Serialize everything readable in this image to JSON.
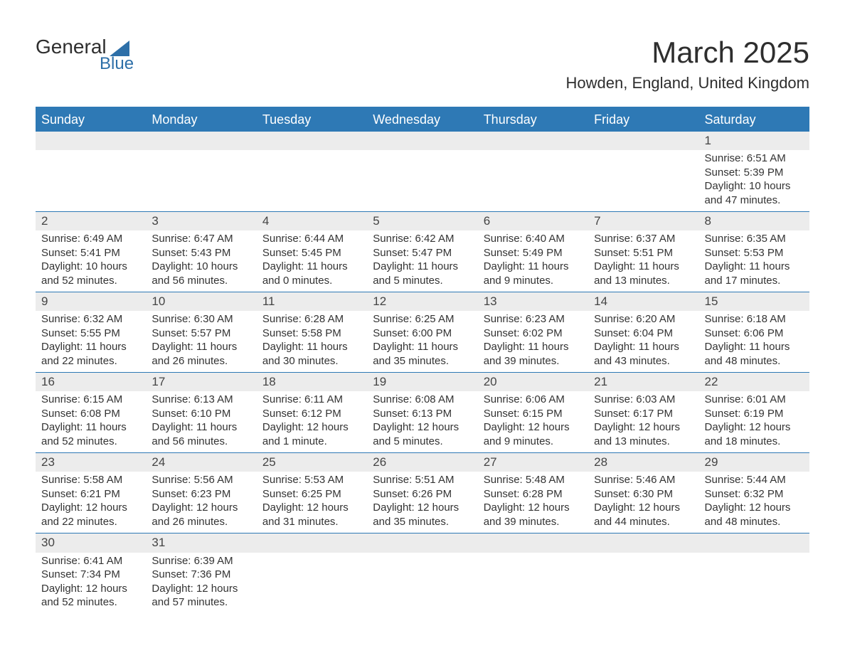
{
  "logo": {
    "text_general": "General",
    "text_blue": "Blue"
  },
  "header": {
    "month_title": "March 2025",
    "location": "Howden, England, United Kingdom"
  },
  "calendar": {
    "type": "table",
    "header_bg": "#2e79b5",
    "header_fg": "#ffffff",
    "daynum_bg": "#ececec",
    "row_divider": "#2e79b5",
    "text_color": "#333333",
    "columns": [
      "Sunday",
      "Monday",
      "Tuesday",
      "Wednesday",
      "Thursday",
      "Friday",
      "Saturday"
    ],
    "weeks": [
      [
        null,
        null,
        null,
        null,
        null,
        null,
        {
          "n": "1",
          "sunrise": "Sunrise: 6:51 AM",
          "sunset": "Sunset: 5:39 PM",
          "d1": "Daylight: 10 hours",
          "d2": "and 47 minutes."
        }
      ],
      [
        {
          "n": "2",
          "sunrise": "Sunrise: 6:49 AM",
          "sunset": "Sunset: 5:41 PM",
          "d1": "Daylight: 10 hours",
          "d2": "and 52 minutes."
        },
        {
          "n": "3",
          "sunrise": "Sunrise: 6:47 AM",
          "sunset": "Sunset: 5:43 PM",
          "d1": "Daylight: 10 hours",
          "d2": "and 56 minutes."
        },
        {
          "n": "4",
          "sunrise": "Sunrise: 6:44 AM",
          "sunset": "Sunset: 5:45 PM",
          "d1": "Daylight: 11 hours",
          "d2": "and 0 minutes."
        },
        {
          "n": "5",
          "sunrise": "Sunrise: 6:42 AM",
          "sunset": "Sunset: 5:47 PM",
          "d1": "Daylight: 11 hours",
          "d2": "and 5 minutes."
        },
        {
          "n": "6",
          "sunrise": "Sunrise: 6:40 AM",
          "sunset": "Sunset: 5:49 PM",
          "d1": "Daylight: 11 hours",
          "d2": "and 9 minutes."
        },
        {
          "n": "7",
          "sunrise": "Sunrise: 6:37 AM",
          "sunset": "Sunset: 5:51 PM",
          "d1": "Daylight: 11 hours",
          "d2": "and 13 minutes."
        },
        {
          "n": "8",
          "sunrise": "Sunrise: 6:35 AM",
          "sunset": "Sunset: 5:53 PM",
          "d1": "Daylight: 11 hours",
          "d2": "and 17 minutes."
        }
      ],
      [
        {
          "n": "9",
          "sunrise": "Sunrise: 6:32 AM",
          "sunset": "Sunset: 5:55 PM",
          "d1": "Daylight: 11 hours",
          "d2": "and 22 minutes."
        },
        {
          "n": "10",
          "sunrise": "Sunrise: 6:30 AM",
          "sunset": "Sunset: 5:57 PM",
          "d1": "Daylight: 11 hours",
          "d2": "and 26 minutes."
        },
        {
          "n": "11",
          "sunrise": "Sunrise: 6:28 AM",
          "sunset": "Sunset: 5:58 PM",
          "d1": "Daylight: 11 hours",
          "d2": "and 30 minutes."
        },
        {
          "n": "12",
          "sunrise": "Sunrise: 6:25 AM",
          "sunset": "Sunset: 6:00 PM",
          "d1": "Daylight: 11 hours",
          "d2": "and 35 minutes."
        },
        {
          "n": "13",
          "sunrise": "Sunrise: 6:23 AM",
          "sunset": "Sunset: 6:02 PM",
          "d1": "Daylight: 11 hours",
          "d2": "and 39 minutes."
        },
        {
          "n": "14",
          "sunrise": "Sunrise: 6:20 AM",
          "sunset": "Sunset: 6:04 PM",
          "d1": "Daylight: 11 hours",
          "d2": "and 43 minutes."
        },
        {
          "n": "15",
          "sunrise": "Sunrise: 6:18 AM",
          "sunset": "Sunset: 6:06 PM",
          "d1": "Daylight: 11 hours",
          "d2": "and 48 minutes."
        }
      ],
      [
        {
          "n": "16",
          "sunrise": "Sunrise: 6:15 AM",
          "sunset": "Sunset: 6:08 PM",
          "d1": "Daylight: 11 hours",
          "d2": "and 52 minutes."
        },
        {
          "n": "17",
          "sunrise": "Sunrise: 6:13 AM",
          "sunset": "Sunset: 6:10 PM",
          "d1": "Daylight: 11 hours",
          "d2": "and 56 minutes."
        },
        {
          "n": "18",
          "sunrise": "Sunrise: 6:11 AM",
          "sunset": "Sunset: 6:12 PM",
          "d1": "Daylight: 12 hours",
          "d2": "and 1 minute."
        },
        {
          "n": "19",
          "sunrise": "Sunrise: 6:08 AM",
          "sunset": "Sunset: 6:13 PM",
          "d1": "Daylight: 12 hours",
          "d2": "and 5 minutes."
        },
        {
          "n": "20",
          "sunrise": "Sunrise: 6:06 AM",
          "sunset": "Sunset: 6:15 PM",
          "d1": "Daylight: 12 hours",
          "d2": "and 9 minutes."
        },
        {
          "n": "21",
          "sunrise": "Sunrise: 6:03 AM",
          "sunset": "Sunset: 6:17 PM",
          "d1": "Daylight: 12 hours",
          "d2": "and 13 minutes."
        },
        {
          "n": "22",
          "sunrise": "Sunrise: 6:01 AM",
          "sunset": "Sunset: 6:19 PM",
          "d1": "Daylight: 12 hours",
          "d2": "and 18 minutes."
        }
      ],
      [
        {
          "n": "23",
          "sunrise": "Sunrise: 5:58 AM",
          "sunset": "Sunset: 6:21 PM",
          "d1": "Daylight: 12 hours",
          "d2": "and 22 minutes."
        },
        {
          "n": "24",
          "sunrise": "Sunrise: 5:56 AM",
          "sunset": "Sunset: 6:23 PM",
          "d1": "Daylight: 12 hours",
          "d2": "and 26 minutes."
        },
        {
          "n": "25",
          "sunrise": "Sunrise: 5:53 AM",
          "sunset": "Sunset: 6:25 PM",
          "d1": "Daylight: 12 hours",
          "d2": "and 31 minutes."
        },
        {
          "n": "26",
          "sunrise": "Sunrise: 5:51 AM",
          "sunset": "Sunset: 6:26 PM",
          "d1": "Daylight: 12 hours",
          "d2": "and 35 minutes."
        },
        {
          "n": "27",
          "sunrise": "Sunrise: 5:48 AM",
          "sunset": "Sunset: 6:28 PM",
          "d1": "Daylight: 12 hours",
          "d2": "and 39 minutes."
        },
        {
          "n": "28",
          "sunrise": "Sunrise: 5:46 AM",
          "sunset": "Sunset: 6:30 PM",
          "d1": "Daylight: 12 hours",
          "d2": "and 44 minutes."
        },
        {
          "n": "29",
          "sunrise": "Sunrise: 5:44 AM",
          "sunset": "Sunset: 6:32 PM",
          "d1": "Daylight: 12 hours",
          "d2": "and 48 minutes."
        }
      ],
      [
        {
          "n": "30",
          "sunrise": "Sunrise: 6:41 AM",
          "sunset": "Sunset: 7:34 PM",
          "d1": "Daylight: 12 hours",
          "d2": "and 52 minutes."
        },
        {
          "n": "31",
          "sunrise": "Sunrise: 6:39 AM",
          "sunset": "Sunset: 7:36 PM",
          "d1": "Daylight: 12 hours",
          "d2": "and 57 minutes."
        },
        null,
        null,
        null,
        null,
        null
      ]
    ]
  }
}
